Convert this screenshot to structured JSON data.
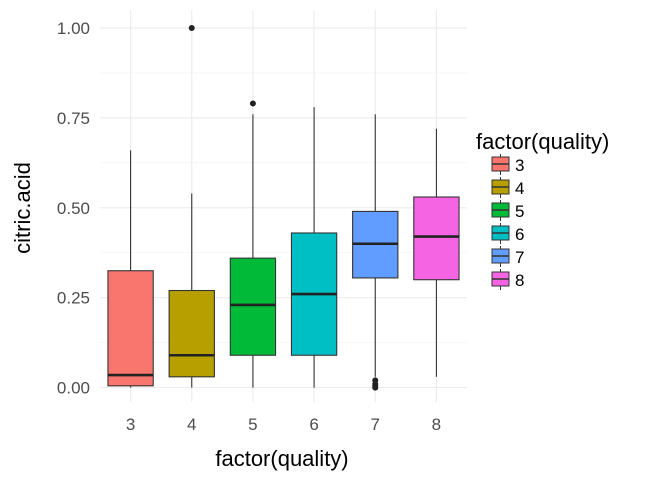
{
  "chart_data": {
    "type": "boxplot",
    "xlabel": "factor(quality)",
    "ylabel": "citric.acid",
    "ylim": [
      -0.04,
      1.05
    ],
    "yticks": [
      0.0,
      0.25,
      0.5,
      0.75,
      1.0
    ],
    "ytick_labels": [
      "0.00",
      "0.25",
      "0.50",
      "0.75",
      "1.00"
    ],
    "categories": [
      "3",
      "4",
      "5",
      "6",
      "7",
      "8"
    ],
    "boxes": [
      {
        "category": "3",
        "whisker_low": 0.0,
        "q1": 0.005,
        "median": 0.035,
        "q3": 0.325,
        "whisker_high": 0.66,
        "outliers": [],
        "color": "#F8766D"
      },
      {
        "category": "4",
        "whisker_low": 0.0,
        "q1": 0.03,
        "median": 0.09,
        "q3": 0.27,
        "whisker_high": 0.54,
        "outliers": [
          1.0
        ],
        "color": "#B79F00"
      },
      {
        "category": "5",
        "whisker_low": 0.0,
        "q1": 0.09,
        "median": 0.23,
        "q3": 0.36,
        "whisker_high": 0.76,
        "outliers": [
          0.79
        ],
        "color": "#00BA38"
      },
      {
        "category": "6",
        "whisker_low": 0.0,
        "q1": 0.09,
        "median": 0.26,
        "q3": 0.43,
        "whisker_high": 0.78,
        "outliers": [],
        "color": "#00BFC4"
      },
      {
        "category": "7",
        "whisker_low": 0.03,
        "q1": 0.305,
        "median": 0.4,
        "q3": 0.49,
        "whisker_high": 0.76,
        "outliers": [
          0.0,
          0.005,
          0.01,
          0.02
        ],
        "color": "#619CFF"
      },
      {
        "category": "8",
        "whisker_low": 0.03,
        "q1": 0.3,
        "median": 0.42,
        "q3": 0.53,
        "whisker_high": 0.72,
        "outliers": [],
        "color": "#F564E3"
      }
    ],
    "legend": {
      "title": "factor(quality)",
      "entries": [
        "3",
        "4",
        "5",
        "6",
        "7",
        "8"
      ],
      "placement": "right"
    },
    "grid": true
  }
}
